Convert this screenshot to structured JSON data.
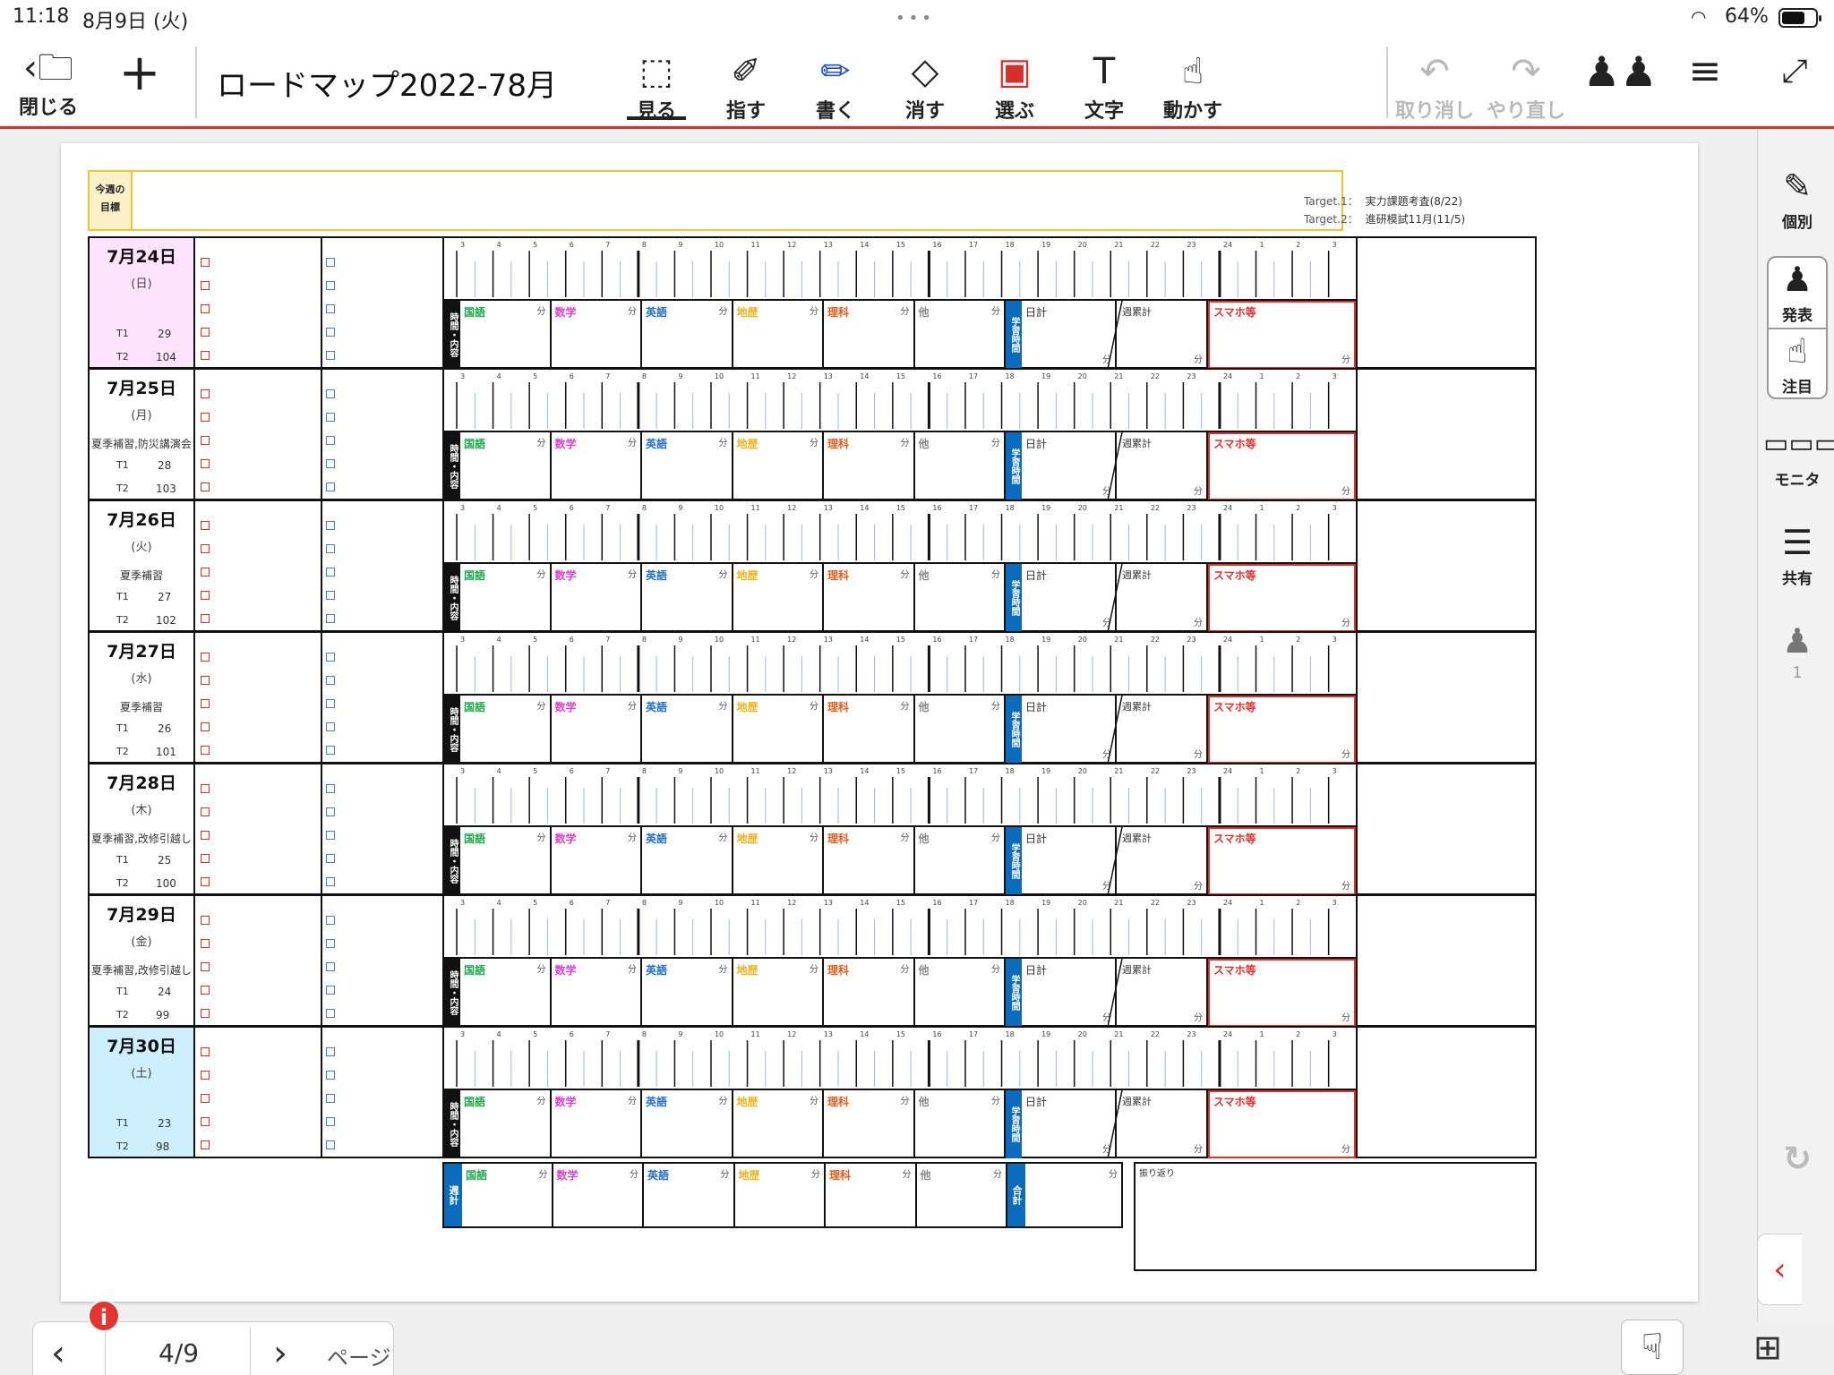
{
  "status": {
    "time": "11:18",
    "date": "8月9日 (火)",
    "battery": "64%"
  },
  "toolbar": {
    "close_label": "閉じる",
    "title": "ロードマップ2022-78月",
    "modes": [
      {
        "label": "見る",
        "icon": "view-icon"
      },
      {
        "label": "指す",
        "icon": "laser-pointer-icon"
      },
      {
        "label": "書く",
        "icon": "pen-icon"
      },
      {
        "label": "消す",
        "icon": "eraser-icon"
      },
      {
        "label": "選ぶ",
        "icon": "lasso-select-icon"
      },
      {
        "label": "文字",
        "icon": "text-icon"
      },
      {
        "label": "動かす",
        "icon": "move-icon"
      }
    ],
    "undo_label": "取り消し",
    "redo_label": "やり直し"
  },
  "sidebar": {
    "items": [
      {
        "label": "個別",
        "icon": "individual-edit-icon"
      },
      {
        "label": "発表",
        "icon": "presenter-icon"
      },
      {
        "label": "注目",
        "icon": "attention-hand-icon"
      },
      {
        "label": "モニタ",
        "icon": "monitor-grid-icon"
      },
      {
        "label": "共有",
        "icon": "share-layers-icon"
      }
    ],
    "participants": "1"
  },
  "pager": {
    "current": "4/9",
    "label": "ページ"
  },
  "sheet": {
    "goal_label_1": "今週の",
    "goal_label_2": "目標",
    "target1_label": "Target.1：",
    "target1": "実力課題考査(8/22)",
    "target2_label": "Target.2：",
    "target2": "進研模試11月(11/5)",
    "t1_label": "T1",
    "t2_label": "T2",
    "hours": [
      "3",
      "4",
      "5",
      "6",
      "7",
      "8",
      "9",
      "10",
      "11",
      "12",
      "13",
      "14",
      "15",
      "16",
      "17",
      "18",
      "19",
      "20",
      "21",
      "22",
      "23",
      "24",
      "1",
      "2",
      "3"
    ],
    "time_label": "時間・内容",
    "study_label": "学習時間",
    "minute_unit": "分",
    "subjects": [
      {
        "name": "国語",
        "color": "#19a84a"
      },
      {
        "name": "数学",
        "color": "#e040d0"
      },
      {
        "name": "英語",
        "color": "#1f6fc9"
      },
      {
        "name": "地歴",
        "color": "#f2b21a"
      },
      {
        "name": "理科",
        "color": "#e85b1a"
      },
      {
        "name": "他",
        "color": "#888888"
      }
    ],
    "day_total_label": "日計",
    "week_cum_label": "週累計",
    "phone_label": "スマホ等",
    "days": [
      {
        "date": "7月24日",
        "weekday": "(日)",
        "note": "",
        "t1": "29",
        "t2": "104",
        "bg": "#fde3fb"
      },
      {
        "date": "7月25日",
        "weekday": "(月)",
        "note": "夏季補習,防災講演会",
        "t1": "28",
        "t2": "103",
        "bg": "#ffffff"
      },
      {
        "date": "7月26日",
        "weekday": "(火)",
        "note": "夏季補習",
        "t1": "27",
        "t2": "102",
        "bg": "#ffffff"
      },
      {
        "date": "7月27日",
        "weekday": "(水)",
        "note": "夏季補習",
        "t1": "26",
        "t2": "101",
        "bg": "#ffffff"
      },
      {
        "date": "7月28日",
        "weekday": "(木)",
        "note": "夏季補習,改修引越し",
        "t1": "25",
        "t2": "100",
        "bg": "#ffffff"
      },
      {
        "date": "7月29日",
        "weekday": "(金)",
        "note": "夏季補習,改修引越し",
        "t1": "24",
        "t2": "99",
        "bg": "#ffffff"
      },
      {
        "date": "7月30日",
        "weekday": "(土)",
        "note": "",
        "t1": "23",
        "t2": "98",
        "bg": "#cdeefb"
      }
    ],
    "week_label": "週計",
    "total_label": "合計",
    "reflection_label": "振り返り"
  }
}
